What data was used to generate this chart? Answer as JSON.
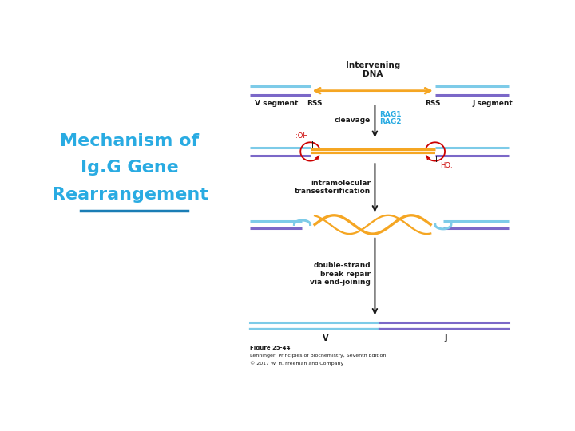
{
  "title_line1": "Mechanism of",
  "title_line2": "Ig.G Gene",
  "title_line3": "Rearrangement",
  "title_color": "#29ABE2",
  "title_underline_color": "#1A7DB5",
  "bg_color": "#ffffff",
  "blue_light": "#7DCBE8",
  "blue_dark": "#7B68C8",
  "orange": "#F5A623",
  "red": "#CC0000",
  "black": "#1a1a1a",
  "rag_color": "#29ABE2",
  "figure_caption_line1": "Figure 25-44",
  "figure_caption_line2": "Lehninger: Principles of Biochemistry, Seventh Edition",
  "figure_caption_line3": "© 2017 W. H. Freeman and Company"
}
